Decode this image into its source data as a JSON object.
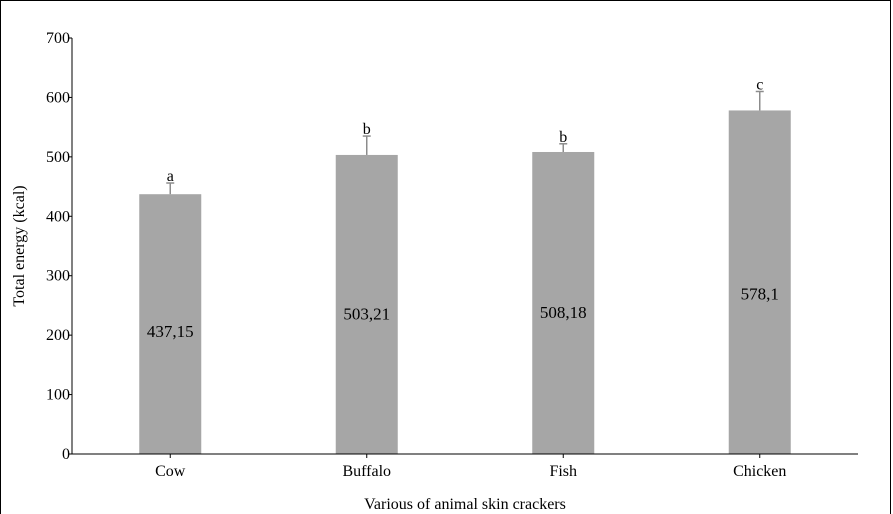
{
  "chart_data": {
    "type": "bar",
    "title": "",
    "xlabel": "Various of animal skin crackers",
    "ylabel": "Total energy (kcal)",
    "ylim": [
      0,
      700
    ],
    "yticks": [
      0,
      100,
      200,
      300,
      400,
      500,
      600,
      700
    ],
    "categories": [
      "Cow",
      "Buffalo",
      "Fish",
      "Chicken"
    ],
    "values": [
      437.15,
      503.21,
      508.18,
      578.1
    ],
    "value_labels": [
      "437,15",
      "503,21",
      "508,18",
      "578,1"
    ],
    "error_upper": [
      456,
      535,
      522,
      610
    ],
    "significance": [
      "a",
      "b",
      "b",
      "c"
    ],
    "bar_color": "#a6a6a6",
    "grid": false,
    "legend": "none"
  }
}
